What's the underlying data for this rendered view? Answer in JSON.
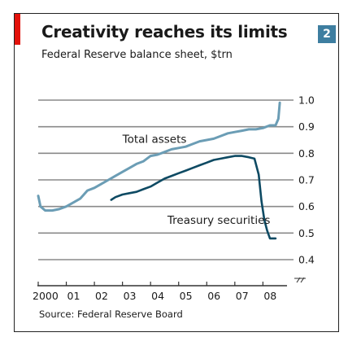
{
  "figure": {
    "title": "Creativity reaches its limits",
    "subtitle": "Federal Reserve balance sheet, $trn",
    "badge": "2",
    "source": "Source: Federal Reserve Board",
    "colors": {
      "accent_bar": "#e3120b",
      "badge_bg": "#3e7ea0",
      "total_assets": "#6b9db5",
      "treasury": "#0e4a63",
      "grid": "#8a8a8a",
      "axis": "#333333"
    }
  },
  "chart_data": {
    "type": "line",
    "ylim": [
      0.4,
      1.0
    ],
    "yticks": [
      "1.0",
      "0.9",
      "0.8",
      "0.7",
      "0.6",
      "0.5",
      "0.4"
    ],
    "xlim": [
      2000,
      2008.8
    ],
    "xticks": [
      {
        "x": 2000.2,
        "label": "2000"
      },
      {
        "x": 2001.2,
        "label": "01"
      },
      {
        "x": 2002.2,
        "label": "02"
      },
      {
        "x": 2003.2,
        "label": "03"
      },
      {
        "x": 2004.2,
        "label": "04"
      },
      {
        "x": 2005.2,
        "label": "05"
      },
      {
        "x": 2006.2,
        "label": "06"
      },
      {
        "x": 2007.2,
        "label": "07"
      },
      {
        "x": 2008.2,
        "label": "08"
      }
    ],
    "axis_break": true,
    "grid": true,
    "series": [
      {
        "name": "Total assets",
        "label_at": {
          "x": 2003.0,
          "y": 0.84
        },
        "points": [
          [
            2000.0,
            0.64
          ],
          [
            2000.08,
            0.6
          ],
          [
            2000.25,
            0.585
          ],
          [
            2000.5,
            0.585
          ],
          [
            2000.75,
            0.59
          ],
          [
            2001.0,
            0.6
          ],
          [
            2001.25,
            0.615
          ],
          [
            2001.5,
            0.63
          ],
          [
            2001.75,
            0.66
          ],
          [
            2002.0,
            0.67
          ],
          [
            2002.25,
            0.685
          ],
          [
            2002.5,
            0.7
          ],
          [
            2002.75,
            0.715
          ],
          [
            2003.0,
            0.73
          ],
          [
            2003.25,
            0.745
          ],
          [
            2003.5,
            0.76
          ],
          [
            2003.75,
            0.77
          ],
          [
            2004.0,
            0.79
          ],
          [
            2004.25,
            0.795
          ],
          [
            2004.5,
            0.805
          ],
          [
            2004.75,
            0.815
          ],
          [
            2005.0,
            0.82
          ],
          [
            2005.25,
            0.825
          ],
          [
            2005.5,
            0.835
          ],
          [
            2005.75,
            0.845
          ],
          [
            2006.0,
            0.85
          ],
          [
            2006.25,
            0.855
          ],
          [
            2006.5,
            0.865
          ],
          [
            2006.75,
            0.875
          ],
          [
            2007.0,
            0.88
          ],
          [
            2007.25,
            0.885
          ],
          [
            2007.5,
            0.89
          ],
          [
            2007.75,
            0.89
          ],
          [
            2008.0,
            0.895
          ],
          [
            2008.25,
            0.905
          ],
          [
            2008.45,
            0.905
          ],
          [
            2008.55,
            0.93
          ],
          [
            2008.6,
            0.99
          ]
        ]
      },
      {
        "name": "Treasury securities",
        "label_at": {
          "x": 2004.6,
          "y": 0.535
        },
        "points": [
          [
            2002.6,
            0.625
          ],
          [
            2002.75,
            0.635
          ],
          [
            2003.0,
            0.645
          ],
          [
            2003.25,
            0.65
          ],
          [
            2003.5,
            0.655
          ],
          [
            2003.75,
            0.665
          ],
          [
            2004.0,
            0.675
          ],
          [
            2004.25,
            0.69
          ],
          [
            2004.5,
            0.705
          ],
          [
            2004.75,
            0.715
          ],
          [
            2005.0,
            0.725
          ],
          [
            2005.25,
            0.735
          ],
          [
            2005.5,
            0.745
          ],
          [
            2005.75,
            0.755
          ],
          [
            2006.0,
            0.765
          ],
          [
            2006.25,
            0.775
          ],
          [
            2006.5,
            0.78
          ],
          [
            2006.75,
            0.785
          ],
          [
            2007.0,
            0.79
          ],
          [
            2007.25,
            0.79
          ],
          [
            2007.5,
            0.785
          ],
          [
            2007.7,
            0.78
          ],
          [
            2007.85,
            0.72
          ],
          [
            2007.95,
            0.62
          ],
          [
            2008.05,
            0.55
          ],
          [
            2008.15,
            0.51
          ],
          [
            2008.25,
            0.48
          ],
          [
            2008.45,
            0.48
          ]
        ]
      }
    ]
  }
}
